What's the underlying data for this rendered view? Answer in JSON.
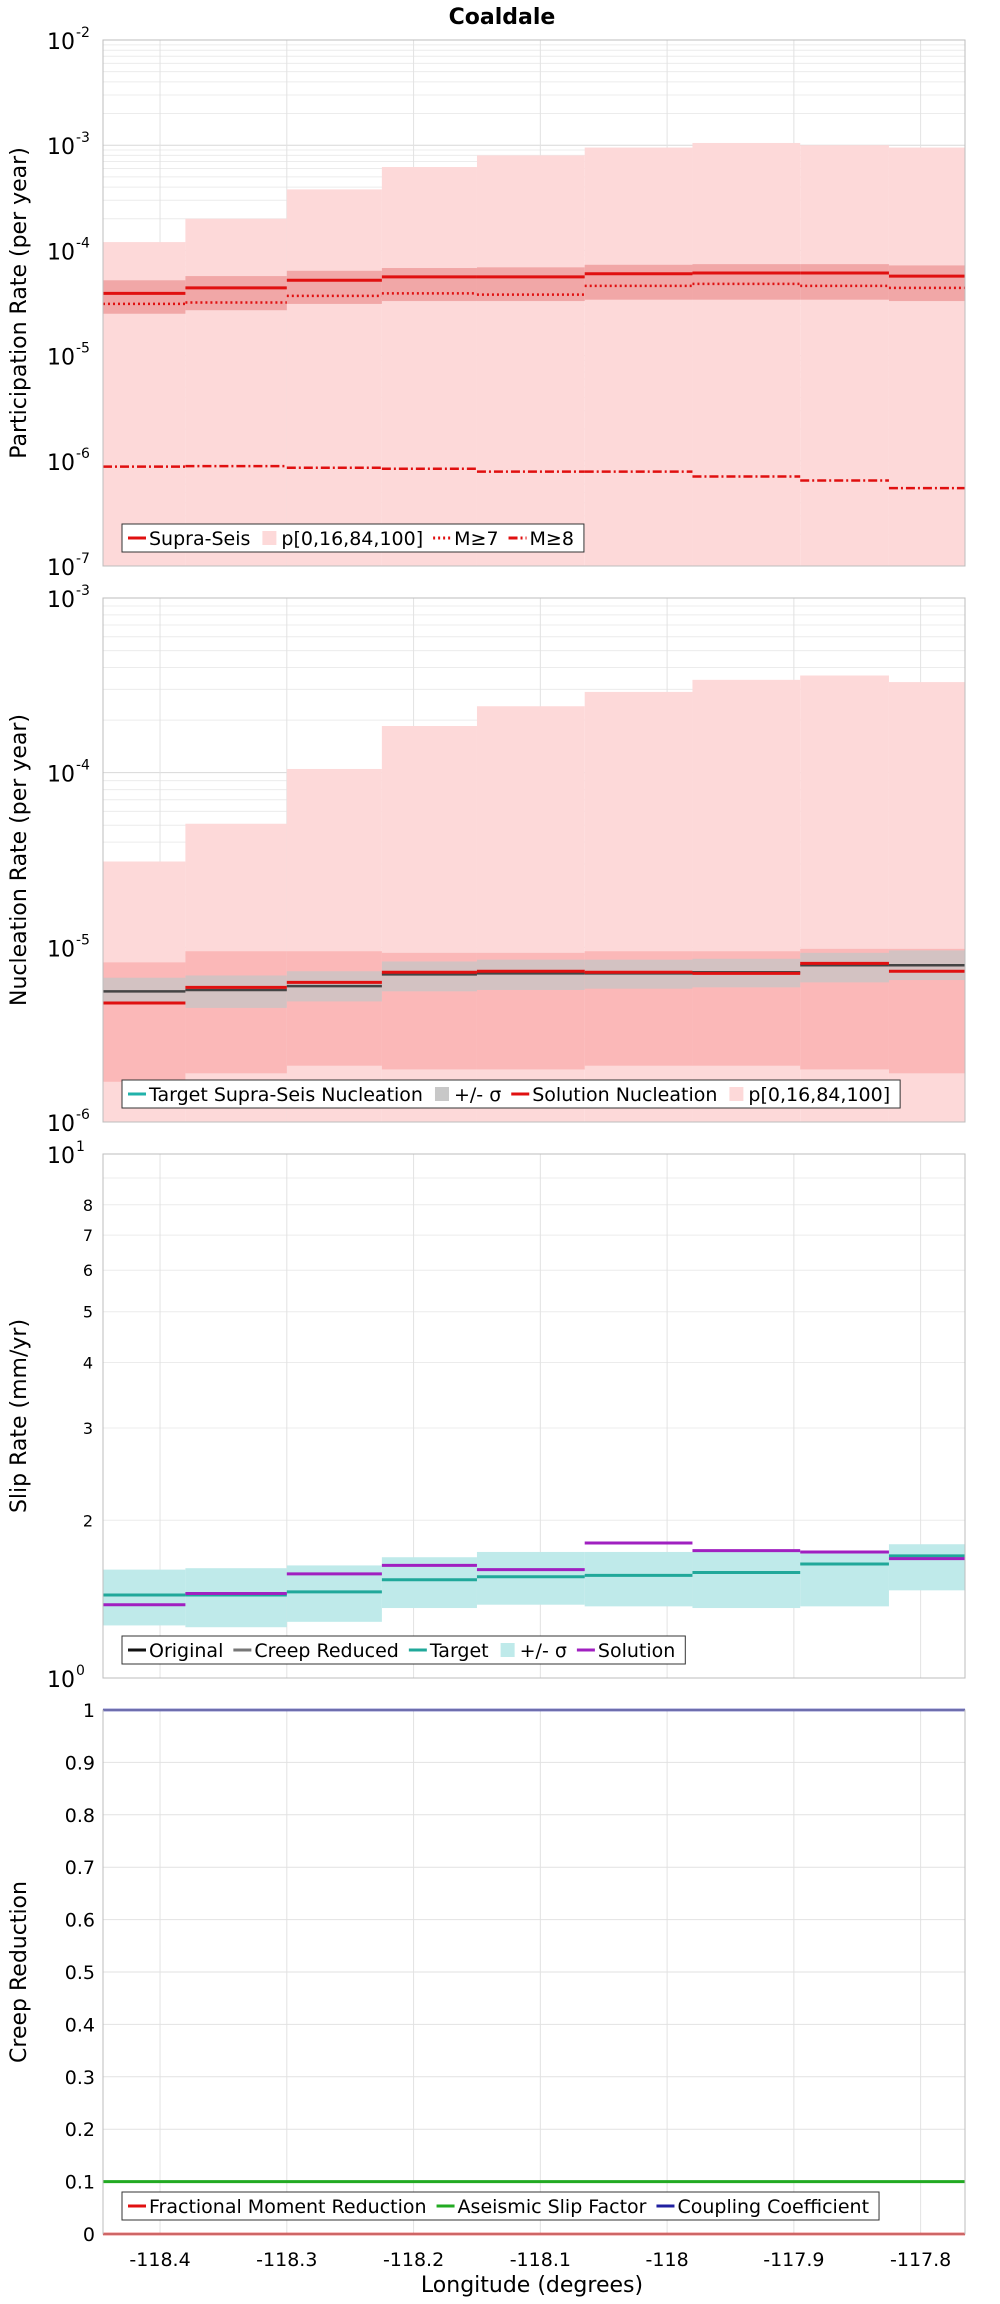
{
  "title": "Coaldale",
  "x_axis_label": "Longitude (degrees)",
  "chart_data": [
    {
      "id": "participation",
      "type": "line",
      "ylabel": "Participation Rate (per year)",
      "yscale": "log",
      "ylim": [
        1e-07,
        0.01
      ],
      "xlim": [
        -118.445,
        -117.765
      ],
      "bin_edges": [
        -118.445,
        -118.38,
        -118.3,
        -118.225,
        -118.15,
        -118.065,
        -117.98,
        -117.895,
        -117.825,
        -117.765
      ],
      "y_tick_labels": [
        {
          "base": "10",
          "exp": "-7"
        },
        {
          "base": "10",
          "exp": "-6"
        },
        {
          "base": "10",
          "exp": "-5"
        },
        {
          "base": "10",
          "exp": "-4"
        },
        {
          "base": "10",
          "exp": "-3"
        },
        {
          "base": "10",
          "exp": "-2"
        }
      ],
      "bands": [
        {
          "name": "p[0,16,84,100] outer",
          "color": "#fdd9d9",
          "lower": [
            1e-07,
            1e-07,
            1e-07,
            1e-07,
            1e-07,
            1e-07,
            1e-07,
            1e-07,
            1e-07
          ],
          "upper": [
            0.00012,
            0.0002,
            0.00038,
            0.00062,
            0.0008,
            0.00095,
            0.00105,
            0.001,
            0.00095
          ]
        },
        {
          "name": "p[0,16,84,100] inner",
          "color": "#f1a7a7",
          "lower": [
            2.5e-05,
            2.7e-05,
            3.1e-05,
            3.3e-05,
            3.3e-05,
            3.4e-05,
            3.4e-05,
            3.4e-05,
            3.3e-05
          ],
          "upper": [
            5.2e-05,
            5.7e-05,
            6.4e-05,
            6.8e-05,
            6.9e-05,
            7.3e-05,
            7.4e-05,
            7.4e-05,
            7.2e-05
          ]
        }
      ],
      "series": [
        {
          "name": "Supra-Seis",
          "color": "#e01010",
          "dash": "",
          "width": 3,
          "values": [
            3.9e-05,
            4.4e-05,
            5.2e-05,
            5.6e-05,
            5.6e-05,
            6e-05,
            6.1e-05,
            6.1e-05,
            5.7e-05
          ]
        },
        {
          "name": "M≥7",
          "color": "#e01010",
          "dash": "2,3",
          "width": 2.5,
          "values": [
            3.1e-05,
            3.2e-05,
            3.7e-05,
            3.9e-05,
            3.8e-05,
            4.6e-05,
            4.8e-05,
            4.6e-05,
            4.4e-05
          ]
        },
        {
          "name": "M≥8",
          "color": "#e01010",
          "dash": "9,3,2,3",
          "width": 2.5,
          "values": [
            8.8e-07,
            8.9e-07,
            8.6e-07,
            8.4e-07,
            7.9e-07,
            7.9e-07,
            7.1e-07,
            6.5e-07,
            5.5e-07
          ]
        }
      ],
      "legend": [
        {
          "label": "Supra-Seis",
          "kind": "line",
          "color": "#e01010",
          "dash": ""
        },
        {
          "label": "p[0,16,84,100]",
          "kind": "box",
          "color": "#fdd9d9"
        },
        {
          "label": "M≥7",
          "kind": "line",
          "color": "#e01010",
          "dash": "2,3"
        },
        {
          "label": "M≥8",
          "kind": "line",
          "color": "#e01010",
          "dash": "9,3,2,3"
        }
      ]
    },
    {
      "id": "nucleation",
      "type": "line",
      "ylabel": "Nucleation Rate (per year)",
      "yscale": "log",
      "ylim": [
        1e-06,
        0.001
      ],
      "xlim": [
        -118.445,
        -117.765
      ],
      "bin_edges": [
        -118.445,
        -118.38,
        -118.3,
        -118.225,
        -118.15,
        -118.065,
        -117.98,
        -117.895,
        -117.825,
        -117.765
      ],
      "y_tick_labels": [
        {
          "base": "10",
          "exp": "-6"
        },
        {
          "base": "10",
          "exp": "-5"
        },
        {
          "base": "10",
          "exp": "-4"
        },
        {
          "base": "10",
          "exp": "-3"
        }
      ],
      "bands": [
        {
          "name": "p[0,16,84,100] outer",
          "color": "#fdd9d9",
          "lower": [
            1e-06,
            1e-06,
            1e-06,
            1e-06,
            1e-06,
            1e-06,
            1e-06,
            1e-06,
            1e-06
          ],
          "upper": [
            3.1e-05,
            5.1e-05,
            0.000105,
            0.000185,
            0.00024,
            0.00029,
            0.00034,
            0.00036,
            0.00033
          ]
        },
        {
          "name": "p[0,16,84,100] inner",
          "color": "#fbb8b8",
          "lower": [
            1.7e-06,
            1.9e-06,
            2.1e-06,
            2e-06,
            2e-06,
            2.1e-06,
            2.1e-06,
            2e-06,
            1.9e-06
          ],
          "upper": [
            8.2e-06,
            9.5e-06,
            9.5e-06,
            9.3e-06,
            9.3e-06,
            9.5e-06,
            9.5e-06,
            9.8e-06,
            9.8e-06
          ]
        },
        {
          "name": "+/- σ",
          "color": "#c6c6c6",
          "opacity": 0.75,
          "lower": [
            4.7e-06,
            4.5e-06,
            4.9e-06,
            5.6e-06,
            5.7e-06,
            5.8e-06,
            5.9e-06,
            6.3e-06,
            6.5e-06
          ],
          "upper": [
            6.7e-06,
            6.9e-06,
            7.3e-06,
            8.3e-06,
            8.5e-06,
            8.5e-06,
            8.6e-06,
            9.3e-06,
            9.6e-06
          ]
        }
      ],
      "series": [
        {
          "name": "Target Supra-Seis Nucleation",
          "color": "#444444",
          "dash": "",
          "width": 2.5,
          "values": [
            5.6e-06,
            5.7e-06,
            6e-06,
            7e-06,
            7.1e-06,
            7.1e-06,
            7.2e-06,
            7.9e-06,
            7.9e-06
          ]
        },
        {
          "name": "Solution Nucleation",
          "color": "#e01010",
          "dash": "",
          "width": 3,
          "values": [
            4.8e-06,
            5.9e-06,
            6.3e-06,
            7.2e-06,
            7.3e-06,
            7.2e-06,
            7.1e-06,
            8.1e-06,
            7.3e-06
          ]
        }
      ],
      "legend": [
        {
          "label": "Target Supra-Seis Nucleation",
          "kind": "line",
          "color": "#20b2aa",
          "dash": ""
        },
        {
          "label": "+/- σ",
          "kind": "box",
          "color": "#c8c8c8"
        },
        {
          "label": "Solution Nucleation",
          "kind": "line",
          "color": "#e01010",
          "dash": ""
        },
        {
          "label": "p[0,16,84,100]",
          "kind": "box",
          "color": "#fdd9d9"
        }
      ]
    },
    {
      "id": "slip",
      "type": "line",
      "ylabel": "Slip Rate (mm/yr)",
      "yscale": "log",
      "ylim": [
        1,
        10
      ],
      "xlim": [
        -118.445,
        -117.765
      ],
      "bin_edges": [
        -118.445,
        -118.38,
        -118.3,
        -118.225,
        -118.15,
        -118.065,
        -117.98,
        -117.895,
        -117.825,
        -117.765
      ],
      "y_tick_labels": [
        {
          "base": "10",
          "exp": "0",
          "v": 1
        },
        {
          "text": "2",
          "v": 2
        },
        {
          "text": "3",
          "v": 3
        },
        {
          "text": "4",
          "v": 4
        },
        {
          "text": "5",
          "v": 5
        },
        {
          "text": "6",
          "v": 6
        },
        {
          "text": "7",
          "v": 7
        },
        {
          "text": "8",
          "v": 8
        },
        {
          "base": "10",
          "exp": "1",
          "v": 10
        }
      ],
      "bands": [
        {
          "name": "+/- σ",
          "color": "#bfeaea",
          "lower": [
            1.26,
            1.25,
            1.28,
            1.36,
            1.38,
            1.37,
            1.36,
            1.37,
            1.47
          ],
          "upper": [
            1.61,
            1.62,
            1.64,
            1.7,
            1.74,
            1.74,
            1.74,
            1.74,
            1.8
          ]
        }
      ],
      "series": [
        {
          "name": "Target",
          "color": "#20a89a",
          "dash": "",
          "width": 3,
          "values": [
            1.44,
            1.44,
            1.46,
            1.54,
            1.56,
            1.57,
            1.59,
            1.65,
            1.71
          ]
        },
        {
          "name": "Solution",
          "color": "#a020c0",
          "dash": "",
          "width": 3,
          "values": [
            1.38,
            1.45,
            1.58,
            1.64,
            1.61,
            1.81,
            1.75,
            1.74,
            1.69
          ]
        }
      ],
      "legend": [
        {
          "label": "Original",
          "kind": "line",
          "color": "#111111",
          "dash": ""
        },
        {
          "label": "Creep Reduced",
          "kind": "line",
          "color": "#777777",
          "dash": ""
        },
        {
          "label": "Target",
          "kind": "line",
          "color": "#20a89a",
          "dash": ""
        },
        {
          "label": "+/- σ",
          "kind": "box",
          "color": "#bfeaea"
        },
        {
          "label": "Solution",
          "kind": "line",
          "color": "#a020c0",
          "dash": ""
        }
      ]
    },
    {
      "id": "creep",
      "type": "line",
      "ylabel": "Creep Reduction",
      "yscale": "linear",
      "ylim": [
        0,
        1
      ],
      "xlim": [
        -118.445,
        -117.765
      ],
      "y_tick_labels": [
        {
          "text": "0",
          "v": 0
        },
        {
          "text": "0.1",
          "v": 0.1
        },
        {
          "text": "0.2",
          "v": 0.2
        },
        {
          "text": "0.3",
          "v": 0.3
        },
        {
          "text": "0.4",
          "v": 0.4
        },
        {
          "text": "0.5",
          "v": 0.5
        },
        {
          "text": "0.6",
          "v": 0.6
        },
        {
          "text": "0.7",
          "v": 0.7
        },
        {
          "text": "0.8",
          "v": 0.8
        },
        {
          "text": "0.9",
          "v": 0.9
        },
        {
          "text": "1",
          "v": 1
        }
      ],
      "series": [
        {
          "name": "Fractional Moment Reduction",
          "color": "#e01010",
          "dash": "",
          "width": 2.5,
          "values_const": 0
        },
        {
          "name": "Aseismic Slip Factor",
          "color": "#22aa22",
          "dash": "",
          "width": 3,
          "values_const": 0.1
        },
        {
          "name": "Coupling Coefficient",
          "color": "#2020a0",
          "dash": "",
          "width": 2.5,
          "values_const": 1
        }
      ],
      "legend": [
        {
          "label": "Fractional Moment Reduction",
          "kind": "line",
          "color": "#e01010",
          "dash": ""
        },
        {
          "label": "Aseismic Slip Factor",
          "kind": "line",
          "color": "#22aa22",
          "dash": ""
        },
        {
          "label": "Coupling Coefficient",
          "kind": "line",
          "color": "#2020a0",
          "dash": ""
        }
      ]
    }
  ],
  "x_ticks": [
    {
      "v": -118.4,
      "text": "-118.4"
    },
    {
      "v": -118.3,
      "text": "-118.3"
    },
    {
      "v": -118.2,
      "text": "-118.2"
    },
    {
      "v": -118.1,
      "text": "-118.1"
    },
    {
      "v": -118.0,
      "text": "-118"
    },
    {
      "v": -117.9,
      "text": "-117.9"
    },
    {
      "v": -117.8,
      "text": "-117.8"
    }
  ]
}
